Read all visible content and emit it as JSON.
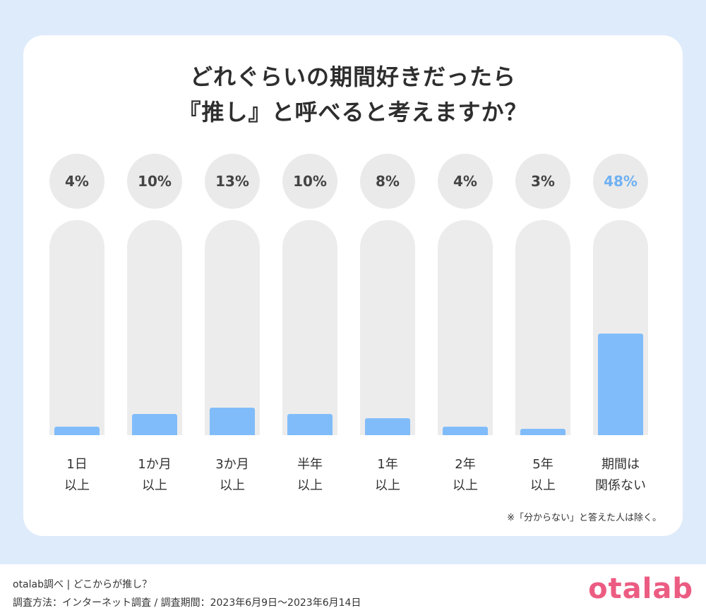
{
  "title": {
    "line1": "どれぐらいの期間好きだったら",
    "line2": "『推し』と呼べると考えますか？"
  },
  "chart_data": {
    "type": "bar",
    "categories": [
      [
        "1日",
        "以上"
      ],
      [
        "1か月",
        "以上"
      ],
      [
        "3か月",
        "以上"
      ],
      [
        "半年",
        "以上"
      ],
      [
        "1年",
        "以上"
      ],
      [
        "2年",
        "以上"
      ],
      [
        "5年",
        "以上"
      ],
      [
        "期間は",
        "関係ない"
      ]
    ],
    "values": [
      4,
      10,
      13,
      10,
      8,
      4,
      3,
      48
    ],
    "value_labels": [
      "4%",
      "10%",
      "13%",
      "10%",
      "8%",
      "4%",
      "3%",
      "48%"
    ],
    "highlight_index": 7,
    "unit": "%",
    "ylim": [
      0,
      100
    ]
  },
  "note": "※「分からない」と答えた人は除く。",
  "footer": {
    "line1": "otalab調べ | どこからが推し？",
    "line2": "調査方法：インターネット調査 / 調査期間：2023年6月9日〜2023年6月14日"
  },
  "logo": "otalab",
  "colors": {
    "bar": "#80bcfa",
    "highlight_text": "#6fb1f2",
    "logo": "#ec5c82",
    "background": "#deebfb"
  }
}
